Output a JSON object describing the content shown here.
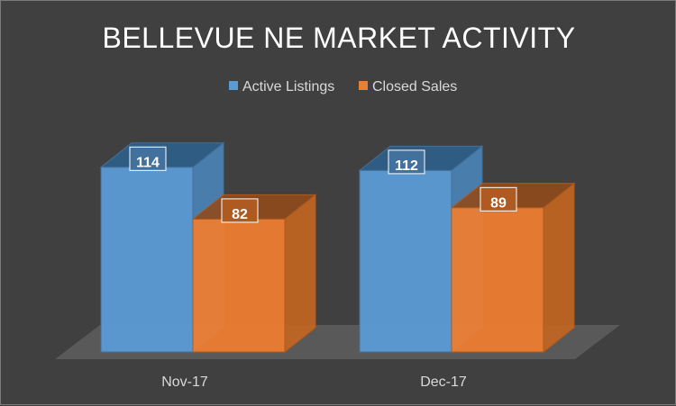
{
  "chart_data": {
    "type": "bar",
    "title": "BELLEVUE NE MARKET ACTIVITY",
    "categories": [
      "Nov-17",
      "Dec-17"
    ],
    "series": [
      {
        "name": "Active Listings",
        "values": [
          114,
          112
        ],
        "color": "#5b9bd5"
      },
      {
        "name": "Closed Sales",
        "values": [
          82,
          89
        ],
        "color": "#ed7d31"
      }
    ],
    "ylim": [
      0,
      140
    ],
    "legend": "top",
    "grid": false,
    "style": "3d-column"
  },
  "colors": {
    "background": "#404040",
    "active_listings": "#5b9bd5",
    "closed_sales": "#ed7d31"
  }
}
